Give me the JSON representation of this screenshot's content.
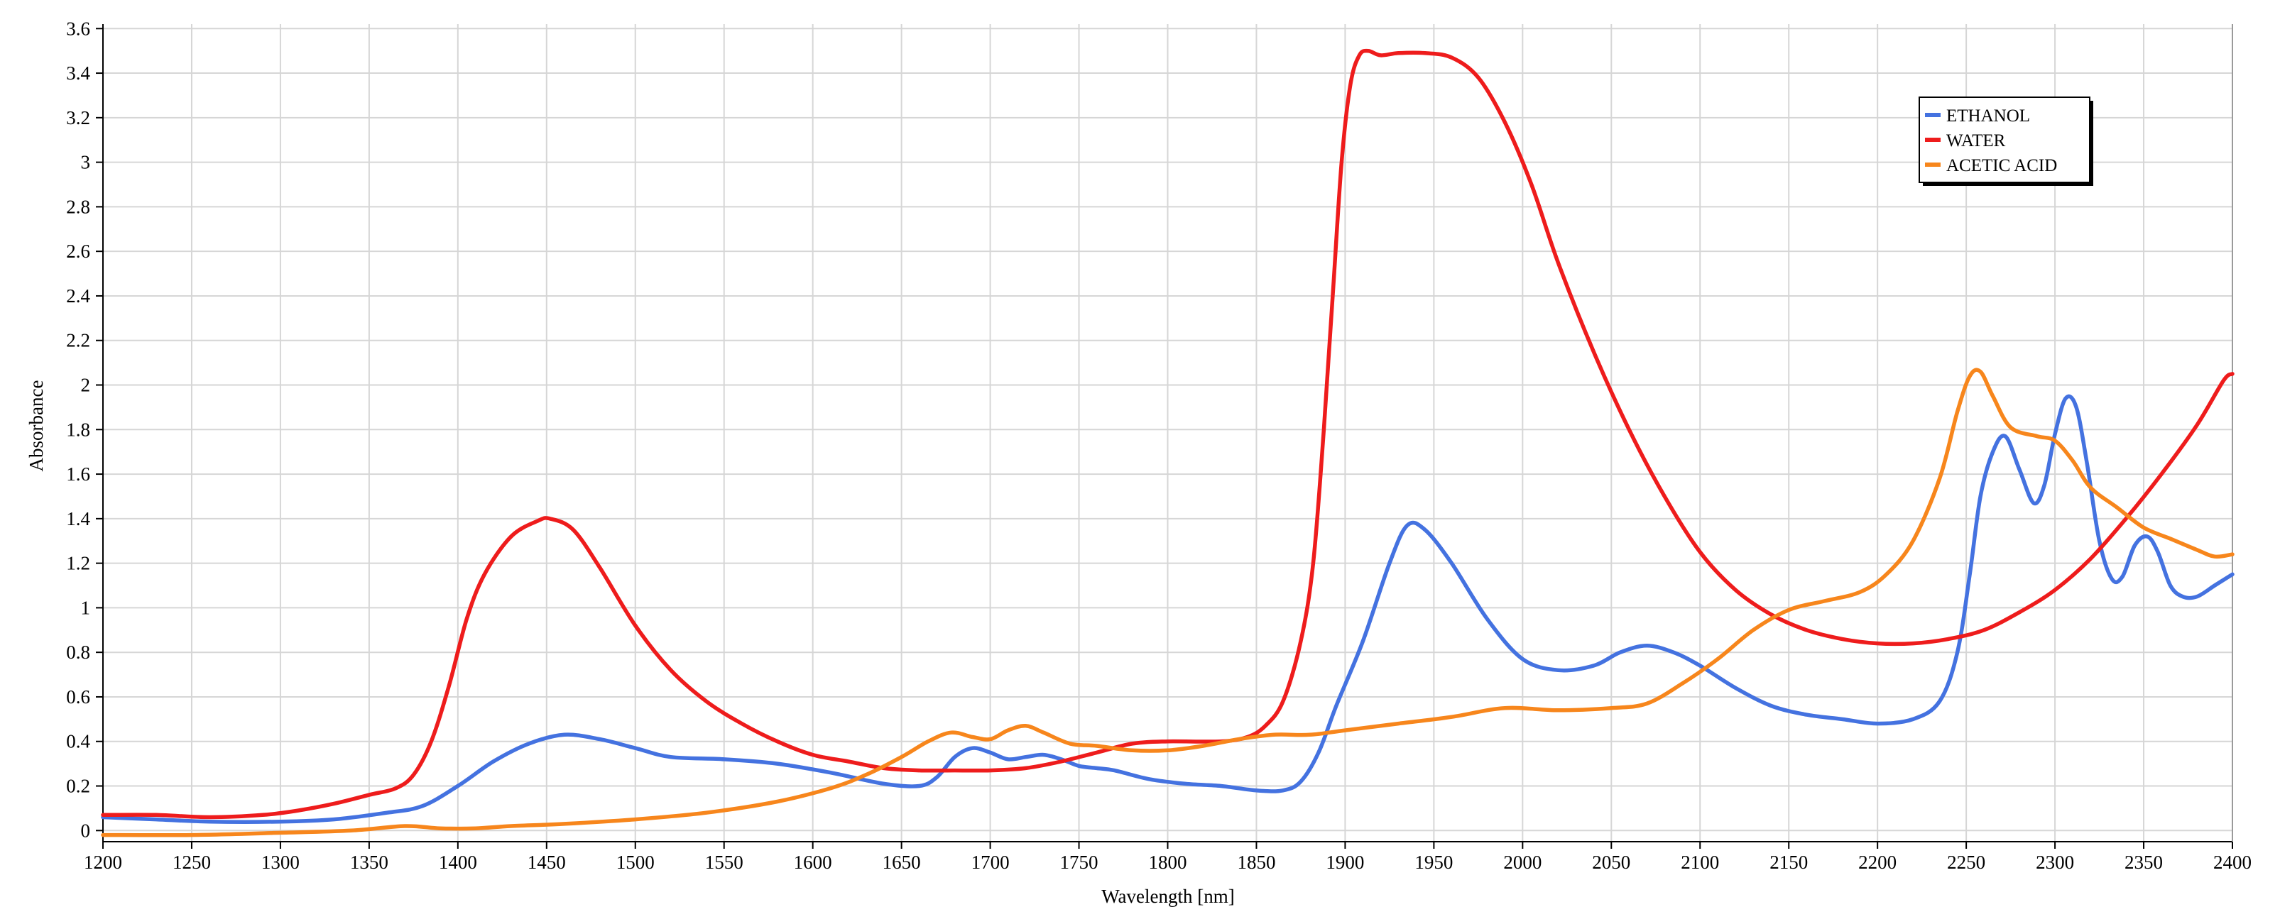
{
  "chart_data": {
    "type": "line",
    "xlabel": "Wavelength [nm]",
    "ylabel": "Absorbance",
    "xlim": [
      1200,
      2400
    ],
    "ylim": [
      -0.05,
      3.62
    ],
    "x_ticks": [
      1200,
      1250,
      1300,
      1350,
      1400,
      1450,
      1500,
      1550,
      1600,
      1650,
      1700,
      1750,
      1800,
      1850,
      1900,
      1950,
      2000,
      2050,
      2100,
      2150,
      2200,
      2250,
      2300,
      2350,
      2400
    ],
    "y_ticks": [
      0,
      0.2,
      0.4,
      0.6,
      0.8,
      1,
      1.2,
      1.4,
      1.6,
      1.8,
      2,
      2.2,
      2.4,
      2.6,
      2.8,
      3,
      3.2,
      3.4,
      3.6
    ],
    "grid": true,
    "legend_position": "top-right",
    "series": [
      {
        "name": "ETHANOL",
        "color": "#4472e0",
        "points": [
          [
            1200,
            0.06
          ],
          [
            1230,
            0.05
          ],
          [
            1260,
            0.04
          ],
          [
            1300,
            0.04
          ],
          [
            1330,
            0.05
          ],
          [
            1360,
            0.08
          ],
          [
            1380,
            0.11
          ],
          [
            1400,
            0.2
          ],
          [
            1420,
            0.31
          ],
          [
            1440,
            0.39
          ],
          [
            1460,
            0.43
          ],
          [
            1480,
            0.41
          ],
          [
            1500,
            0.37
          ],
          [
            1520,
            0.33
          ],
          [
            1550,
            0.32
          ],
          [
            1580,
            0.3
          ],
          [
            1610,
            0.26
          ],
          [
            1640,
            0.21
          ],
          [
            1660,
            0.2
          ],
          [
            1670,
            0.24
          ],
          [
            1680,
            0.33
          ],
          [
            1690,
            0.37
          ],
          [
            1700,
            0.35
          ],
          [
            1710,
            0.32
          ],
          [
            1720,
            0.33
          ],
          [
            1730,
            0.34
          ],
          [
            1740,
            0.32
          ],
          [
            1750,
            0.29
          ],
          [
            1760,
            0.28
          ],
          [
            1770,
            0.27
          ],
          [
            1790,
            0.23
          ],
          [
            1810,
            0.21
          ],
          [
            1830,
            0.2
          ],
          [
            1850,
            0.18
          ],
          [
            1865,
            0.18
          ],
          [
            1875,
            0.22
          ],
          [
            1885,
            0.35
          ],
          [
            1895,
            0.56
          ],
          [
            1910,
            0.85
          ],
          [
            1925,
            1.2
          ],
          [
            1935,
            1.37
          ],
          [
            1945,
            1.35
          ],
          [
            1960,
            1.2
          ],
          [
            1980,
            0.95
          ],
          [
            2000,
            0.77
          ],
          [
            2020,
            0.72
          ],
          [
            2040,
            0.74
          ],
          [
            2055,
            0.8
          ],
          [
            2070,
            0.83
          ],
          [
            2085,
            0.8
          ],
          [
            2100,
            0.74
          ],
          [
            2120,
            0.64
          ],
          [
            2140,
            0.56
          ],
          [
            2160,
            0.52
          ],
          [
            2180,
            0.5
          ],
          [
            2200,
            0.48
          ],
          [
            2220,
            0.5
          ],
          [
            2235,
            0.58
          ],
          [
            2245,
            0.8
          ],
          [
            2252,
            1.15
          ],
          [
            2258,
            1.5
          ],
          [
            2265,
            1.7
          ],
          [
            2272,
            1.77
          ],
          [
            2280,
            1.62
          ],
          [
            2288,
            1.47
          ],
          [
            2294,
            1.55
          ],
          [
            2300,
            1.78
          ],
          [
            2306,
            1.94
          ],
          [
            2312,
            1.9
          ],
          [
            2318,
            1.65
          ],
          [
            2325,
            1.3
          ],
          [
            2332,
            1.13
          ],
          [
            2338,
            1.14
          ],
          [
            2345,
            1.28
          ],
          [
            2352,
            1.32
          ],
          [
            2358,
            1.25
          ],
          [
            2365,
            1.1
          ],
          [
            2372,
            1.05
          ],
          [
            2380,
            1.05
          ],
          [
            2390,
            1.1
          ],
          [
            2400,
            1.15
          ]
        ]
      },
      {
        "name": "WATER",
        "color": "#ee1c1c",
        "points": [
          [
            1200,
            0.07
          ],
          [
            1230,
            0.07
          ],
          [
            1260,
            0.06
          ],
          [
            1290,
            0.07
          ],
          [
            1310,
            0.09
          ],
          [
            1330,
            0.12
          ],
          [
            1350,
            0.16
          ],
          [
            1365,
            0.19
          ],
          [
            1375,
            0.25
          ],
          [
            1385,
            0.4
          ],
          [
            1395,
            0.65
          ],
          [
            1405,
            0.95
          ],
          [
            1415,
            1.15
          ],
          [
            1430,
            1.32
          ],
          [
            1445,
            1.39
          ],
          [
            1452,
            1.4
          ],
          [
            1465,
            1.35
          ],
          [
            1480,
            1.18
          ],
          [
            1500,
            0.92
          ],
          [
            1520,
            0.72
          ],
          [
            1540,
            0.58
          ],
          [
            1560,
            0.48
          ],
          [
            1580,
            0.4
          ],
          [
            1600,
            0.34
          ],
          [
            1620,
            0.31
          ],
          [
            1640,
            0.28
          ],
          [
            1660,
            0.27
          ],
          [
            1680,
            0.27
          ],
          [
            1700,
            0.27
          ],
          [
            1720,
            0.28
          ],
          [
            1740,
            0.31
          ],
          [
            1760,
            0.35
          ],
          [
            1780,
            0.39
          ],
          [
            1800,
            0.4
          ],
          [
            1830,
            0.4
          ],
          [
            1845,
            0.42
          ],
          [
            1855,
            0.47
          ],
          [
            1865,
            0.58
          ],
          [
            1875,
            0.85
          ],
          [
            1882,
            1.2
          ],
          [
            1888,
            1.8
          ],
          [
            1893,
            2.4
          ],
          [
            1898,
            3.0
          ],
          [
            1903,
            3.35
          ],
          [
            1908,
            3.48
          ],
          [
            1913,
            3.5
          ],
          [
            1920,
            3.48
          ],
          [
            1930,
            3.49
          ],
          [
            1945,
            3.49
          ],
          [
            1960,
            3.47
          ],
          [
            1975,
            3.38
          ],
          [
            1990,
            3.18
          ],
          [
            2005,
            2.9
          ],
          [
            2020,
            2.55
          ],
          [
            2040,
            2.15
          ],
          [
            2060,
            1.8
          ],
          [
            2080,
            1.5
          ],
          [
            2100,
            1.25
          ],
          [
            2120,
            1.08
          ],
          [
            2140,
            0.97
          ],
          [
            2160,
            0.9
          ],
          [
            2180,
            0.86
          ],
          [
            2200,
            0.84
          ],
          [
            2220,
            0.84
          ],
          [
            2240,
            0.86
          ],
          [
            2260,
            0.9
          ],
          [
            2280,
            0.98
          ],
          [
            2300,
            1.08
          ],
          [
            2320,
            1.22
          ],
          [
            2340,
            1.4
          ],
          [
            2360,
            1.6
          ],
          [
            2380,
            1.82
          ],
          [
            2395,
            2.02
          ],
          [
            2400,
            2.05
          ]
        ]
      },
      {
        "name": "ACETIC ACID",
        "color": "#f7861c",
        "points": [
          [
            1200,
            -0.02
          ],
          [
            1250,
            -0.02
          ],
          [
            1300,
            -0.01
          ],
          [
            1340,
            0.0
          ],
          [
            1370,
            0.02
          ],
          [
            1390,
            0.01
          ],
          [
            1410,
            0.01
          ],
          [
            1430,
            0.02
          ],
          [
            1460,
            0.03
          ],
          [
            1500,
            0.05
          ],
          [
            1540,
            0.08
          ],
          [
            1580,
            0.13
          ],
          [
            1610,
            0.19
          ],
          [
            1630,
            0.25
          ],
          [
            1650,
            0.33
          ],
          [
            1665,
            0.4
          ],
          [
            1678,
            0.44
          ],
          [
            1690,
            0.42
          ],
          [
            1700,
            0.41
          ],
          [
            1710,
            0.45
          ],
          [
            1720,
            0.47
          ],
          [
            1730,
            0.44
          ],
          [
            1745,
            0.39
          ],
          [
            1760,
            0.38
          ],
          [
            1780,
            0.36
          ],
          [
            1800,
            0.36
          ],
          [
            1820,
            0.38
          ],
          [
            1840,
            0.41
          ],
          [
            1860,
            0.43
          ],
          [
            1880,
            0.43
          ],
          [
            1900,
            0.45
          ],
          [
            1930,
            0.48
          ],
          [
            1960,
            0.51
          ],
          [
            1990,
            0.55
          ],
          [
            2020,
            0.54
          ],
          [
            2050,
            0.55
          ],
          [
            2070,
            0.57
          ],
          [
            2090,
            0.66
          ],
          [
            2110,
            0.77
          ],
          [
            2130,
            0.9
          ],
          [
            2150,
            0.99
          ],
          [
            2170,
            1.03
          ],
          [
            2190,
            1.07
          ],
          [
            2205,
            1.15
          ],
          [
            2220,
            1.3
          ],
          [
            2235,
            1.58
          ],
          [
            2245,
            1.88
          ],
          [
            2252,
            2.04
          ],
          [
            2258,
            2.06
          ],
          [
            2265,
            1.95
          ],
          [
            2275,
            1.81
          ],
          [
            2290,
            1.77
          ],
          [
            2300,
            1.75
          ],
          [
            2310,
            1.66
          ],
          [
            2320,
            1.54
          ],
          [
            2335,
            1.45
          ],
          [
            2350,
            1.36
          ],
          [
            2365,
            1.31
          ],
          [
            2380,
            1.26
          ],
          [
            2390,
            1.23
          ],
          [
            2400,
            1.24
          ]
        ]
      }
    ]
  }
}
